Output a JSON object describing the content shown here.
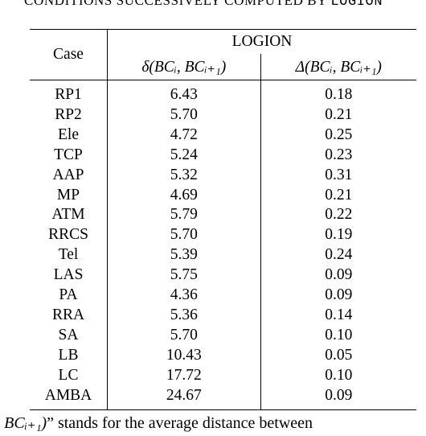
{
  "caption_top": {
    "text": "CONDITIONS SUCCESSIVELY COMPUTED BY",
    "mono": "LOGION"
  },
  "table": {
    "case_header": "Case",
    "group_header": "LOGION",
    "col_delta_small": "δ(BCᵢ, BCᵢ₊₁)",
    "col_delta_big": "Δ(BCᵢ, BCᵢ₊₁)",
    "rows": [
      {
        "case": "RP1",
        "d": "6.43",
        "D": "0.18"
      },
      {
        "case": "RP2",
        "d": "5.70",
        "D": "0.21"
      },
      {
        "case": "Ele",
        "d": "4.72",
        "D": "0.25"
      },
      {
        "case": "TCP",
        "d": "5.24",
        "D": "0.23"
      },
      {
        "case": "AAP",
        "d": "5.32",
        "D": "0.31"
      },
      {
        "case": "MP",
        "d": "4.69",
        "D": "0.21"
      },
      {
        "case": "ATM",
        "d": "5.79",
        "D": "0.22"
      },
      {
        "case": "RRCS",
        "d": "5.70",
        "D": "0.19"
      },
      {
        "case": "Tel",
        "d": "5.39",
        "D": "0.24"
      },
      {
        "case": "LAS",
        "d": "5.75",
        "D": "0.09"
      },
      {
        "case": "PA",
        "d": "4.36",
        "D": "0.09"
      },
      {
        "case": "RRA",
        "d": "5.36",
        "D": "0.14"
      },
      {
        "case": "SA",
        "d": "5.70",
        "D": "0.10"
      },
      {
        "case": "LB",
        "d": "10.43",
        "D": "0.05"
      },
      {
        "case": "LC",
        "d": "17.72",
        "D": "0.10"
      },
      {
        "case": "AMBA",
        "d": "24.67",
        "D": "0.09"
      }
    ]
  },
  "footer": {
    "math": "ᵢ, BCᵢ₊₁)",
    "text": "” stands for the average distance between"
  }
}
